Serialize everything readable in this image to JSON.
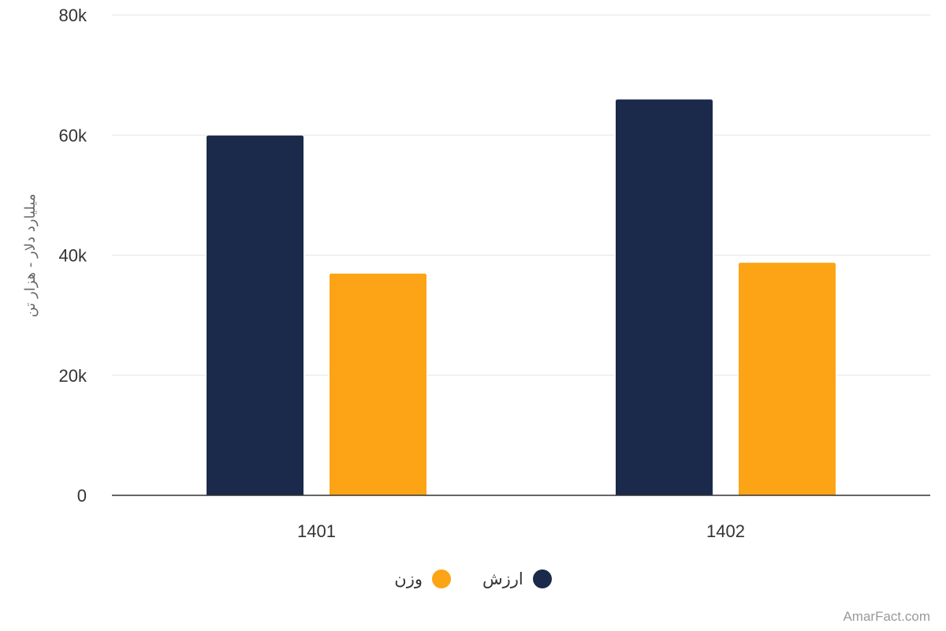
{
  "chart_data": {
    "type": "bar",
    "categories": [
      "1401",
      "1402"
    ],
    "series": [
      {
        "name": "ارزش",
        "values": [
          60000,
          66000
        ],
        "color": "#1b2a4a"
      },
      {
        "name": "وزن",
        "values": [
          37000,
          38800
        ],
        "color": "#fca415"
      }
    ],
    "ylabel": "میلیارد دلار - هزار تن",
    "ylim": [
      0,
      80000
    ],
    "yticks": [
      0,
      20000,
      40000,
      60000,
      80000
    ],
    "ytick_labels": [
      "0",
      "20k",
      "40k",
      "60k",
      "80k"
    ],
    "grid": true,
    "legend_position": "bottom-center"
  },
  "credit": "AmarFact.com"
}
